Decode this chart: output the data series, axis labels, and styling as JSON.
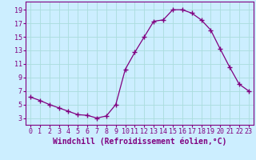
{
  "x": [
    0,
    1,
    2,
    3,
    4,
    5,
    6,
    7,
    8,
    9,
    10,
    11,
    12,
    13,
    14,
    15,
    16,
    17,
    18,
    19,
    20,
    21,
    22,
    23
  ],
  "y": [
    6.1,
    5.6,
    5.0,
    4.5,
    4.0,
    3.5,
    3.4,
    3.0,
    3.3,
    5.0,
    10.2,
    12.7,
    15.0,
    17.3,
    17.5,
    19.0,
    19.0,
    18.5,
    17.5,
    16.0,
    13.2,
    10.5,
    8.0,
    7.0
  ],
  "line_color": "#800080",
  "marker": "+",
  "marker_size": 4,
  "bg_color": "#cceeff",
  "grid_color": "#aadddd",
  "axis_color": "#800080",
  "tick_color": "#800080",
  "xlabel": "Windchill (Refroidissement éolien,°C)",
  "ylabel": "",
  "yticks": [
    3,
    5,
    7,
    9,
    11,
    13,
    15,
    17,
    19
  ],
  "ylim": [
    2.0,
    20.2
  ],
  "xlim": [
    -0.5,
    23.5
  ],
  "label_fontsize": 7,
  "tick_fontsize": 6
}
